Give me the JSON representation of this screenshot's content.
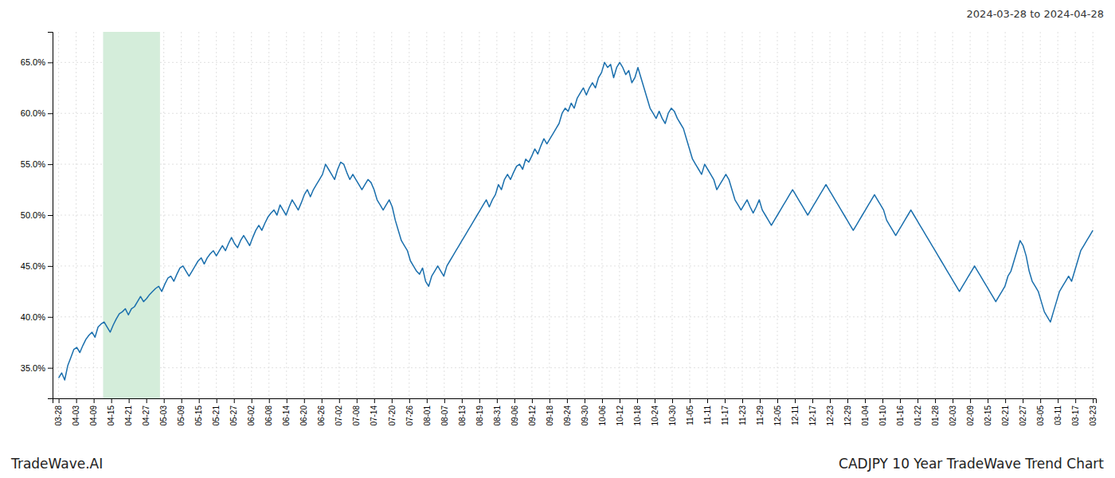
{
  "chart_data": {
    "type": "line",
    "title": "CADJPY 10 Year TradeWave Trend Chart",
    "subtitle": "2024-03-28 to 2024-04-28",
    "annotations": [
      "TradeWave.AI"
    ],
    "color": "#1a6fad",
    "grid": true,
    "xlim": [
      -2,
      342
    ],
    "xticks": [
      {
        "value": 0,
        "label": "03-28"
      },
      {
        "value": 5.779661,
        "label": "04-03"
      },
      {
        "value": 11.559322,
        "label": "04-09"
      },
      {
        "value": 17.338983,
        "label": "04-15"
      },
      {
        "value": 23.118644,
        "label": "04-21"
      },
      {
        "value": 28.898305,
        "label": "04-27"
      },
      {
        "value": 34.677966,
        "label": "05-03"
      },
      {
        "value": 40.457627,
        "label": "05-09"
      },
      {
        "value": 46.237288,
        "label": "05-15"
      },
      {
        "value": 52.016949,
        "label": "05-21"
      },
      {
        "value": 57.79661,
        "label": "05-27"
      },
      {
        "value": 63.576271,
        "label": "06-02"
      },
      {
        "value": 69.355932,
        "label": "06-08"
      },
      {
        "value": 75.135593,
        "label": "06-14"
      },
      {
        "value": 80.915254,
        "label": "06-20"
      },
      {
        "value": 86.694915,
        "label": "06-26"
      },
      {
        "value": 92.474576,
        "label": "07-02"
      },
      {
        "value": 98.254237,
        "label": "07-08"
      },
      {
        "value": 104.033898,
        "label": "07-14"
      },
      {
        "value": 109.813559,
        "label": "07-20"
      },
      {
        "value": 115.59322,
        "label": "07-26"
      },
      {
        "value": 121.372881,
        "label": "08-01"
      },
      {
        "value": 127.152542,
        "label": "08-07"
      },
      {
        "value": 132.932203,
        "label": "08-13"
      },
      {
        "value": 138.711864,
        "label": "08-19"
      },
      {
        "value": 144.491525,
        "label": "08-31"
      },
      {
        "value": 150.271186,
        "label": "09-06"
      },
      {
        "value": 156.050847,
        "label": "09-12"
      },
      {
        "value": 161.830508,
        "label": "09-18"
      },
      {
        "value": 167.610169,
        "label": "09-24"
      },
      {
        "value": 173.389831,
        "label": "09-30"
      },
      {
        "value": 179.169492,
        "label": "10-06"
      },
      {
        "value": 184.949153,
        "label": "10-12"
      },
      {
        "value": 190.728814,
        "label": "10-18"
      },
      {
        "value": 196.508475,
        "label": "10-24"
      },
      {
        "value": 202.288136,
        "label": "10-30"
      },
      {
        "value": 208.067797,
        "label": "11-05"
      },
      {
        "value": 213.847458,
        "label": "11-11"
      },
      {
        "value": 219.627119,
        "label": "11-17"
      },
      {
        "value": 225.40678,
        "label": "11-23"
      },
      {
        "value": 231.186441,
        "label": "11-29"
      },
      {
        "value": 236.966102,
        "label": "12-05"
      },
      {
        "value": 242.745763,
        "label": "12-11"
      },
      {
        "value": 248.525424,
        "label": "12-17"
      },
      {
        "value": 254.305085,
        "label": "12-23"
      },
      {
        "value": 260.084746,
        "label": "12-29"
      },
      {
        "value": 265.864407,
        "label": "01-04"
      },
      {
        "value": 271.644068,
        "label": "01-10"
      },
      {
        "value": 277.423729,
        "label": "01-16"
      },
      {
        "value": 283.20339,
        "label": "01-22"
      },
      {
        "value": 288.983051,
        "label": "01-28"
      },
      {
        "value": 294.762712,
        "label": "02-03"
      },
      {
        "value": 300.542373,
        "label": "02-09"
      },
      {
        "value": 306.322034,
        "label": "02-15"
      },
      {
        "value": 312.101695,
        "label": "02-21"
      },
      {
        "value": 317.881356,
        "label": "02-27"
      },
      {
        "value": 323.661017,
        "label": "03-05"
      },
      {
        "value": 329.440678,
        "label": "03-11"
      },
      {
        "value": 335.220339,
        "label": "03-17"
      },
      {
        "value": 341,
        "label": "03-23"
      }
    ],
    "ylim": [
      32.0,
      68.0
    ],
    "yticks": [
      {
        "value": 35.0,
        "label": "35.0%"
      },
      {
        "value": 40.0,
        "label": "40.0%"
      },
      {
        "value": 45.0,
        "label": "45.0%"
      },
      {
        "value": 50.0,
        "label": "50.0%"
      },
      {
        "value": 55.0,
        "label": "55.0%"
      },
      {
        "value": 60.0,
        "label": "60.0%"
      },
      {
        "value": 65.0,
        "label": "65.0%"
      }
    ],
    "shade": {
      "x": [
        14.663,
        33.418
      ],
      "color": "#d4edda"
    },
    "x": [
      0,
      1,
      2,
      3,
      4,
      5,
      6,
      7,
      8,
      9,
      10,
      11,
      12,
      13,
      14,
      15,
      16,
      17,
      18,
      19,
      20,
      21,
      22,
      23,
      24,
      25,
      26,
      27,
      28,
      29,
      30,
      31,
      32,
      33,
      34,
      35,
      36,
      37,
      38,
      39,
      40,
      41,
      42,
      43,
      44,
      45,
      46,
      47,
      48,
      49,
      50,
      51,
      52,
      53,
      54,
      55,
      56,
      57,
      58,
      59,
      60,
      61,
      62,
      63,
      64,
      65,
      66,
      67,
      68,
      69,
      70,
      71,
      72,
      73,
      74,
      75,
      76,
      77,
      78,
      79,
      80,
      81,
      82,
      83,
      84,
      85,
      86,
      87,
      88,
      89,
      90,
      91,
      92,
      93,
      94,
      95,
      96,
      97,
      98,
      99,
      100,
      101,
      102,
      103,
      104,
      105,
      106,
      107,
      108,
      109,
      110,
      111,
      112,
      113,
      114,
      115,
      116,
      117,
      118,
      119,
      120,
      121,
      122,
      123,
      124,
      125,
      126,
      127,
      128,
      129,
      130,
      131,
      132,
      133,
      134,
      135,
      136,
      137,
      138,
      139,
      140,
      141,
      142,
      143,
      144,
      145,
      146,
      147,
      148,
      149,
      150,
      151,
      152,
      153,
      154,
      155,
      156,
      157,
      158,
      159,
      160,
      161,
      162,
      163,
      164,
      165,
      166,
      167,
      168,
      169,
      170,
      171,
      172,
      173,
      174,
      175,
      176,
      177,
      178,
      179,
      180,
      181,
      182,
      183,
      184,
      185,
      186,
      187,
      188,
      189,
      190,
      191,
      192,
      193,
      194,
      195,
      196,
      197,
      198,
      199,
      200,
      201,
      202,
      203,
      204,
      205,
      206,
      207,
      208,
      209,
      210,
      211,
      212,
      213,
      214,
      215,
      216,
      217,
      218,
      219,
      220,
      221,
      222,
      223,
      224,
      225,
      226,
      227,
      228,
      229,
      230,
      231,
      232,
      233,
      234,
      235,
      236,
      237,
      238,
      239,
      240,
      241,
      242,
      243,
      244,
      245,
      246,
      247,
      248,
      249,
      250,
      251,
      252,
      253,
      254,
      255,
      256,
      257,
      258,
      259,
      260,
      261,
      262,
      263,
      264,
      265,
      266,
      267,
      268,
      269,
      270,
      271,
      272,
      273,
      274,
      275,
      276,
      277,
      278,
      279,
      280,
      281,
      282,
      283,
      284,
      285,
      286,
      287,
      288,
      289,
      290,
      291,
      292,
      293,
      294,
      295,
      296,
      297,
      298,
      299,
      300,
      301,
      302,
      303,
      304,
      305,
      306,
      307,
      308,
      309,
      310,
      311,
      312,
      313,
      314,
      315,
      316,
      317,
      318,
      319,
      320,
      321,
      322,
      323,
      324,
      325,
      326,
      327,
      328,
      329,
      330,
      331,
      332,
      333,
      334,
      335,
      336,
      337,
      338,
      339,
      340,
      341
    ],
    "values": [
      34.0,
      34.5,
      33.8,
      35.2,
      36.0,
      36.8,
      37.0,
      36.5,
      37.2,
      37.8,
      38.2,
      38.5,
      38.0,
      39.0,
      39.3,
      39.5,
      39.0,
      38.5,
      39.2,
      39.8,
      40.3,
      40.5,
      40.8,
      40.2,
      40.8,
      41.0,
      41.5,
      42.0,
      41.5,
      41.8,
      42.2,
      42.5,
      42.8,
      43.0,
      42.5,
      43.2,
      43.8,
      44.0,
      43.5,
      44.2,
      44.8,
      45.0,
      44.5,
      44.0,
      44.5,
      45.0,
      45.5,
      45.8,
      45.2,
      45.8,
      46.2,
      46.5,
      46.0,
      46.5,
      47.0,
      46.5,
      47.2,
      47.8,
      47.2,
      46.8,
      47.5,
      48.0,
      47.5,
      47.0,
      47.8,
      48.5,
      49.0,
      48.5,
      49.2,
      49.8,
      50.2,
      50.5,
      50.0,
      51.0,
      50.5,
      50.0,
      50.8,
      51.5,
      51.0,
      50.5,
      51.2,
      52.0,
      52.5,
      51.8,
      52.5,
      53.0,
      53.5,
      54.0,
      55.0,
      54.5,
      54.0,
      53.5,
      54.5,
      55.2,
      55.0,
      54.2,
      53.5,
      54.0,
      53.5,
      53.0,
      52.5,
      53.0,
      53.5,
      53.2,
      52.5,
      51.5,
      51.0,
      50.5,
      51.0,
      51.5,
      50.8,
      49.5,
      48.5,
      47.5,
      47.0,
      46.5,
      45.5,
      45.0,
      44.5,
      44.2,
      44.8,
      43.5,
      43.0,
      44.0,
      44.5,
      45.0,
      44.5,
      44.0,
      45.0,
      45.5,
      46.0,
      46.5,
      47.0,
      47.5,
      48.0,
      48.5,
      49.0,
      49.5,
      50.0,
      50.5,
      51.0,
      51.5,
      50.8,
      51.5,
      52.0,
      53.0,
      52.5,
      53.5,
      54.0,
      53.5,
      54.2,
      54.8,
      55.0,
      54.5,
      55.5,
      55.2,
      55.8,
      56.5,
      56.0,
      56.8,
      57.5,
      57.0,
      57.5,
      58.0,
      58.5,
      59.0,
      60.0,
      60.5,
      60.2,
      61.0,
      60.5,
      61.5,
      62.0,
      62.5,
      61.8,
      62.5,
      63.0,
      62.5,
      63.5,
      64.0,
      65.0,
      64.5,
      64.8,
      63.5,
      64.5,
      65.0,
      64.5,
      63.8,
      64.2,
      63.0,
      63.5,
      64.5,
      63.5,
      62.5,
      61.5,
      60.5,
      60.0,
      59.5,
      60.2,
      59.5,
      59.0,
      60.0,
      60.5,
      60.2,
      59.5,
      59.0,
      58.5,
      57.5,
      56.5,
      55.5,
      55.0,
      54.5,
      54.0,
      55.0,
      54.5,
      54.0,
      53.5,
      52.5,
      53.0,
      53.5,
      54.0,
      53.5,
      52.5,
      51.5,
      51.0,
      50.5,
      51.0,
      51.5,
      50.8,
      50.2,
      50.8,
      51.5,
      50.5,
      50.0,
      49.5,
      49.0,
      49.5,
      50.0,
      50.5,
      51.0,
      51.5,
      52.0,
      52.5,
      52.0,
      51.5,
      51.0,
      50.5,
      50.0,
      50.5,
      51.0,
      51.5,
      52.0,
      52.5,
      53.0,
      52.5,
      52.0,
      51.5,
      51.0,
      50.5,
      50.0,
      49.5,
      49.0,
      48.5,
      49.0,
      49.5,
      50.0,
      50.5,
      51.0,
      51.5,
      52.0,
      51.5,
      51.0,
      50.5,
      49.5,
      49.0,
      48.5,
      48.0,
      48.5,
      49.0,
      49.5,
      50.0,
      50.5,
      50.0,
      49.5,
      49.0,
      48.5,
      48.0,
      47.5,
      47.0,
      46.5,
      46.0,
      45.5,
      45.0,
      44.5,
      44.0,
      43.5,
      43.0,
      42.5,
      43.0,
      43.5,
      44.0,
      44.5,
      45.0,
      44.5,
      44.0,
      43.5,
      43.0,
      42.5,
      42.0,
      41.5,
      42.0,
      42.5,
      43.0,
      44.0,
      44.5,
      45.5,
      46.5,
      47.5,
      47.0,
      46.0,
      44.5,
      43.5,
      43.0,
      42.5,
      41.5,
      40.5,
      40.0,
      39.5,
      40.5,
      41.5,
      42.5,
      43.0,
      43.5,
      44.0,
      43.5,
      44.5,
      45.5,
      46.5,
      47.0,
      47.5,
      48.0,
      48.5
    ]
  }
}
